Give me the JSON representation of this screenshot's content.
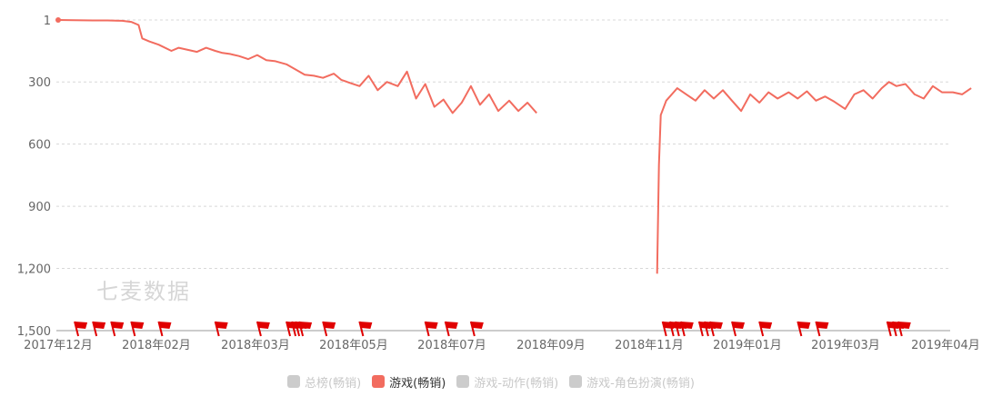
{
  "watermark": "七麦数据",
  "colors": {
    "line": "#f26c5f",
    "grid": "#d8d8d8",
    "axis": "#666666",
    "flag": "#e00000",
    "inactive": "#cccccc"
  },
  "legend": [
    {
      "label": "总榜(畅销)",
      "active": false
    },
    {
      "label": "游戏(畅销)",
      "active": true
    },
    {
      "label": "游戏-动作(畅销)",
      "active": false
    },
    {
      "label": "游戏-角色扮演(畅销)",
      "active": false
    }
  ],
  "chart_data": {
    "type": "line",
    "y_axis": {
      "inverted": true,
      "min": 1,
      "max": 1500,
      "ticks": [
        "1",
        "300",
        "600",
        "900",
        "1,200",
        "1,500"
      ],
      "tick_values": [
        1,
        300,
        600,
        900,
        1200,
        1500
      ]
    },
    "x_axis": {
      "ticks": [
        "2017年12月",
        "2018年02月",
        "2018年03月",
        "2018年05月",
        "2018年07月",
        "2018年09月",
        "2018年11月",
        "2019年01月",
        "2019年03月",
        "2019年04月"
      ]
    },
    "series": [
      {
        "name": "游戏(畅销)",
        "note_gap": "no data between 2018-09 and 2018-10",
        "segments": [
          [
            [
              "2017-12-01",
              1
            ],
            [
              "2017-12-10",
              2
            ],
            [
              "2017-12-20",
              3
            ],
            [
              "2017-12-28",
              3
            ],
            [
              "2018-01-05",
              5
            ],
            [
              "2018-01-10",
              10
            ],
            [
              "2018-01-14",
              25
            ],
            [
              "2018-01-16",
              90
            ],
            [
              "2018-01-20",
              105
            ],
            [
              "2018-01-25",
              120
            ],
            [
              "2018-02-01",
              150
            ],
            [
              "2018-02-05",
              135
            ],
            [
              "2018-02-10",
              145
            ],
            [
              "2018-02-15",
              155
            ],
            [
              "2018-02-20",
              135
            ],
            [
              "2018-02-25",
              150
            ],
            [
              "2018-03-01",
              160
            ],
            [
              "2018-03-05",
              165
            ],
            [
              "2018-03-10",
              175
            ],
            [
              "2018-03-15",
              190
            ],
            [
              "2018-03-20",
              170
            ],
            [
              "2018-03-25",
              195
            ],
            [
              "2018-03-30",
              200
            ],
            [
              "2018-04-05",
              215
            ],
            [
              "2018-04-10",
              240
            ],
            [
              "2018-04-15",
              265
            ],
            [
              "2018-04-20",
              270
            ],
            [
              "2018-04-25",
              280
            ],
            [
              "2018-05-01",
              260
            ],
            [
              "2018-05-05",
              290
            ],
            [
              "2018-05-10",
              305
            ],
            [
              "2018-05-15",
              320
            ],
            [
              "2018-05-20",
              270
            ],
            [
              "2018-05-25",
              340
            ],
            [
              "2018-05-30",
              300
            ],
            [
              "2018-06-05",
              320
            ],
            [
              "2018-06-10",
              250
            ],
            [
              "2018-06-15",
              380
            ],
            [
              "2018-06-20",
              310
            ],
            [
              "2018-06-25",
              420
            ],
            [
              "2018-06-30",
              385
            ],
            [
              "2018-07-05",
              450
            ],
            [
              "2018-07-10",
              400
            ],
            [
              "2018-07-15",
              320
            ],
            [
              "2018-07-20",
              410
            ],
            [
              "2018-07-25",
              360
            ],
            [
              "2018-07-30",
              440
            ],
            [
              "2018-08-05",
              390
            ],
            [
              "2018-08-10",
              440
            ],
            [
              "2018-08-15",
              400
            ],
            [
              "2018-08-20",
              450
            ]
          ],
          [
            [
              "2018-10-25",
              1225
            ],
            [
              "2018-10-26",
              700
            ],
            [
              "2018-10-27",
              460
            ],
            [
              "2018-10-30",
              390
            ],
            [
              "2018-11-05",
              330
            ],
            [
              "2018-11-10",
              360
            ],
            [
              "2018-11-15",
              390
            ],
            [
              "2018-11-20",
              340
            ],
            [
              "2018-11-25",
              380
            ],
            [
              "2018-11-30",
              340
            ],
            [
              "2018-12-05",
              390
            ],
            [
              "2018-12-10",
              440
            ],
            [
              "2018-12-15",
              360
            ],
            [
              "2018-12-20",
              400
            ],
            [
              "2018-12-25",
              350
            ],
            [
              "2018-12-30",
              380
            ],
            [
              "2019-01-05",
              350
            ],
            [
              "2019-01-10",
              380
            ],
            [
              "2019-01-15",
              345
            ],
            [
              "2019-01-20",
              390
            ],
            [
              "2019-01-25",
              370
            ],
            [
              "2019-01-30",
              395
            ],
            [
              "2019-02-05",
              430
            ],
            [
              "2019-02-10",
              360
            ],
            [
              "2019-02-15",
              340
            ],
            [
              "2019-02-20",
              380
            ],
            [
              "2019-02-25",
              330
            ],
            [
              "2019-03-01",
              300
            ],
            [
              "2019-03-05",
              320
            ],
            [
              "2019-03-10",
              310
            ],
            [
              "2019-03-15",
              360
            ],
            [
              "2019-03-20",
              380
            ],
            [
              "2019-03-25",
              320
            ],
            [
              "2019-03-30",
              350
            ],
            [
              "2019-04-05",
              350
            ],
            [
              "2019-04-10",
              360
            ],
            [
              "2019-04-15",
              330
            ]
          ]
        ]
      }
    ],
    "markers": {
      "type": "flag",
      "dates": [
        "2017-12-10",
        "2017-12-20",
        "2017-12-30",
        "2018-01-10",
        "2018-01-25",
        "2018-02-25",
        "2018-03-20",
        "2018-04-05",
        "2018-04-08",
        "2018-04-10",
        "2018-04-12",
        "2018-04-25",
        "2018-05-15",
        "2018-06-20",
        "2018-07-01",
        "2018-07-15",
        "2018-10-28",
        "2018-11-01",
        "2018-11-04",
        "2018-11-07",
        "2018-11-17",
        "2018-11-20",
        "2018-11-23",
        "2018-12-05",
        "2018-12-20",
        "2019-01-10",
        "2019-01-20",
        "2019-02-28",
        "2019-03-03",
        "2019-03-06"
      ]
    }
  }
}
